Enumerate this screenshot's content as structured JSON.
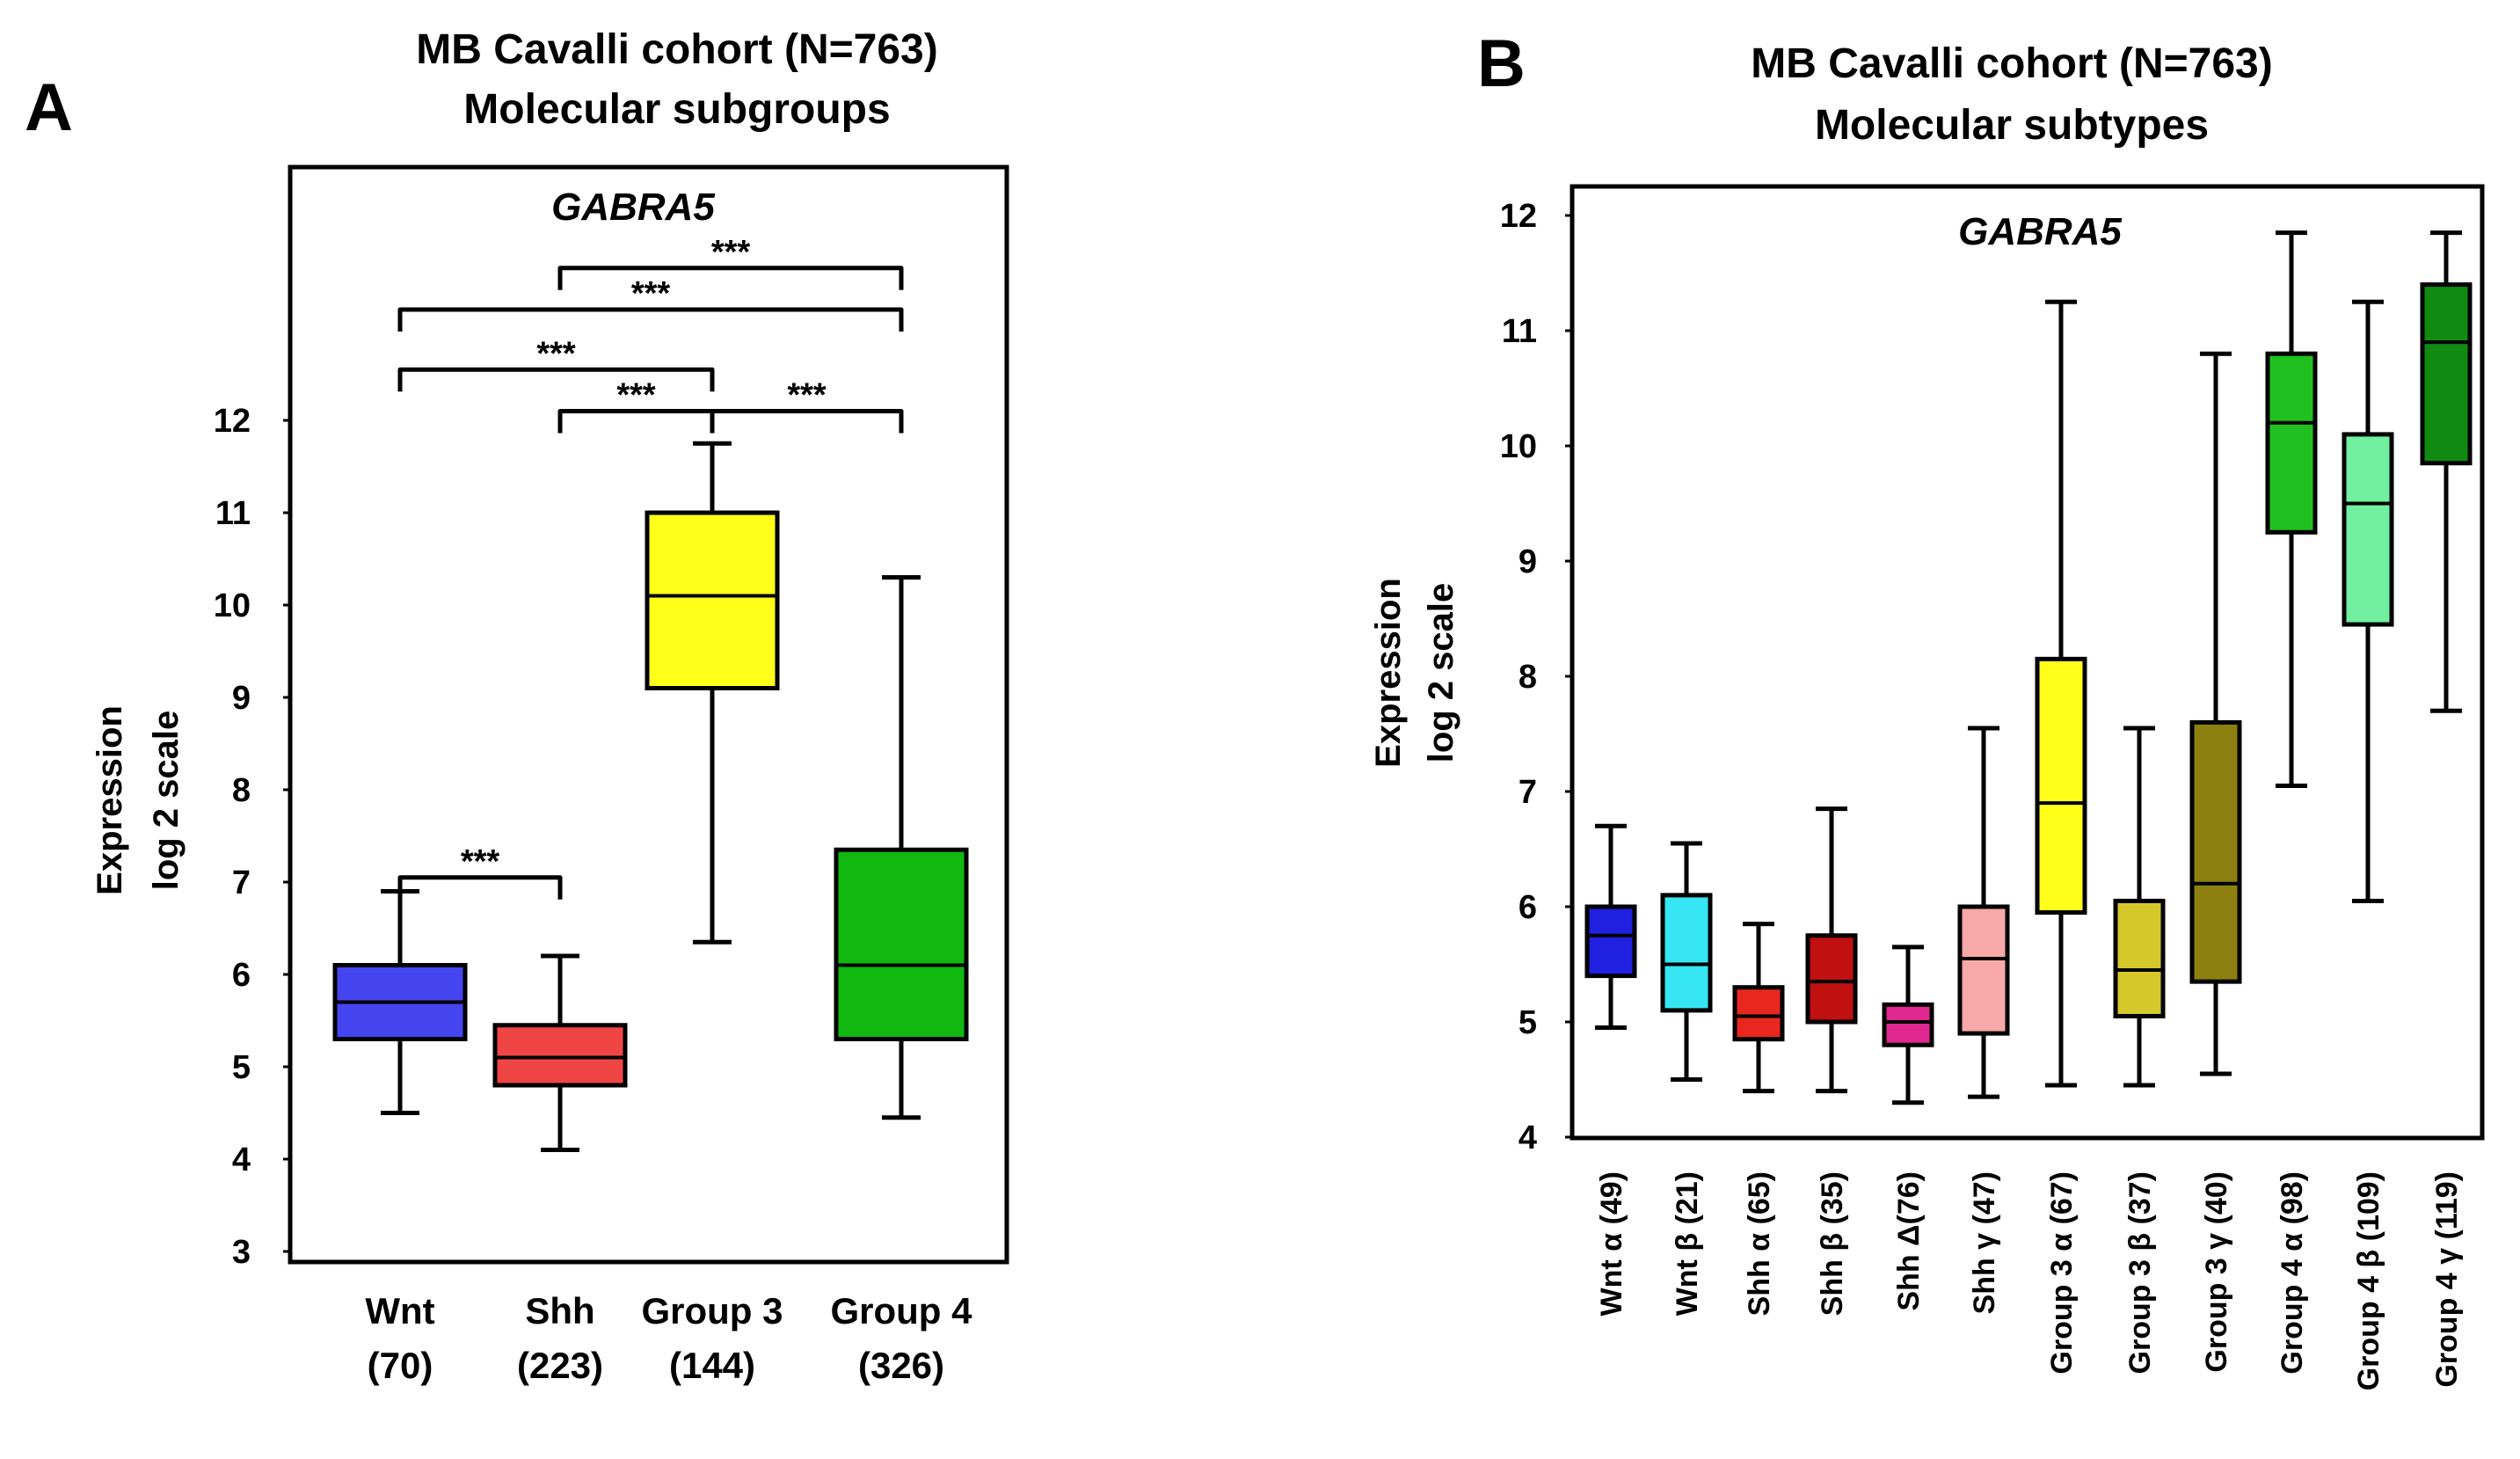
{
  "chart_data": [
    {
      "type": "box",
      "panel": "A",
      "title": "MB Cavalli cohort (N=763)",
      "subtitle": "Molecular subgroups",
      "gene": "GABRA5",
      "ylabel_line1": "Expression",
      "ylabel_line2": "log 2 scale",
      "ylim": [
        3,
        13
      ],
      "yticks": [
        3,
        4,
        5,
        6,
        7,
        8,
        9,
        10,
        11,
        12
      ],
      "categories": [
        {
          "name": "Wnt",
          "n": "(70)"
        },
        {
          "name": "Shh",
          "n": "(223)"
        },
        {
          "name": "Group 3",
          "n": "(144)"
        },
        {
          "name": "Group 4",
          "n": "(326)"
        }
      ],
      "boxes": [
        {
          "min": 4.5,
          "q1": 5.3,
          "median": 5.7,
          "q3": 6.1,
          "max": 6.9,
          "color": "#4545f0"
        },
        {
          "min": 4.1,
          "q1": 4.8,
          "median": 5.1,
          "q3": 5.45,
          "max": 6.2,
          "color": "#f04545"
        },
        {
          "min": 6.35,
          "q1": 9.1,
          "median": 10.1,
          "q3": 11.0,
          "max": 11.75,
          "color": "#ffff1a"
        },
        {
          "min": 4.45,
          "q1": 5.3,
          "median": 6.1,
          "q3": 7.35,
          "max": 10.3,
          "color": "#10b810"
        }
      ],
      "significance": [
        {
          "from": 0,
          "to": 1,
          "label": "***",
          "level": 7.05
        },
        {
          "from": 1,
          "to": 2,
          "label": "***",
          "level": 12.1
        },
        {
          "from": 2,
          "to": 3,
          "label": "***",
          "level": 12.1
        },
        {
          "from": 0,
          "to": 2,
          "label": "***",
          "level": 12.55
        },
        {
          "from": 0,
          "to": 3,
          "label": "***",
          "level": 13.2
        },
        {
          "from": 1,
          "to": 3,
          "label": "***",
          "level": 13.65
        }
      ]
    },
    {
      "type": "box",
      "panel": "B",
      "title": "MB Cavalli cohort (N=763)",
      "subtitle": "Molecular subtypes",
      "gene": "GABRA5",
      "ylabel_line1": "Expression",
      "ylabel_line2": "log 2 scale",
      "ylim": [
        4,
        12
      ],
      "yticks": [
        4,
        5,
        6,
        7,
        8,
        9,
        10,
        11,
        12
      ],
      "categories": [
        "Wnt α (49)",
        "Wnt β  (21)",
        "Shh α  (65)",
        "Shh β (35)",
        "Shh Δ(76)",
        "Shh γ (47)",
        "Group 3 α (67)",
        "Group 3 β (37)",
        "Group 3 γ (40)",
        "Group 4 α (98)",
        "Group 4 β (109)",
        "Group 4 γ (119)"
      ],
      "boxes": [
        {
          "min": 4.95,
          "q1": 5.4,
          "median": 5.75,
          "q3": 6.0,
          "max": 6.7,
          "color": "#2020e0"
        },
        {
          "min": 4.5,
          "q1": 5.1,
          "median": 5.5,
          "q3": 6.1,
          "max": 6.55,
          "color": "#35e6f2"
        },
        {
          "min": 4.4,
          "q1": 4.85,
          "median": 5.05,
          "q3": 5.3,
          "max": 5.85,
          "color": "#e8281e"
        },
        {
          "min": 4.4,
          "q1": 5.0,
          "median": 5.35,
          "q3": 5.75,
          "max": 6.85,
          "color": "#c01010"
        },
        {
          "min": 4.3,
          "q1": 4.8,
          "median": 5.0,
          "q3": 5.15,
          "max": 5.65,
          "color": "#e02890"
        },
        {
          "min": 4.35,
          "q1": 4.9,
          "median": 5.55,
          "q3": 6.0,
          "max": 7.55,
          "color": "#f8a8a8"
        },
        {
          "min": 4.45,
          "q1": 5.95,
          "median": 6.9,
          "q3": 8.15,
          "max": 11.25,
          "color": "#ffff1a"
        },
        {
          "min": 4.45,
          "q1": 5.05,
          "median": 5.45,
          "q3": 6.05,
          "max": 7.55,
          "color": "#d4c82a"
        },
        {
          "min": 4.55,
          "q1": 5.35,
          "median": 6.2,
          "q3": 7.6,
          "max": 10.8,
          "color": "#8c8010"
        },
        {
          "min": 7.05,
          "q1": 9.25,
          "median": 10.2,
          "q3": 10.8,
          "max": 11.85,
          "color": "#20c020"
        },
        {
          "min": 6.05,
          "q1": 8.45,
          "median": 9.5,
          "q3": 10.1,
          "max": 11.25,
          "color": "#70f0a0"
        },
        {
          "min": 7.7,
          "q1": 9.85,
          "median": 10.9,
          "q3": 11.4,
          "max": 11.85,
          "color": "#108a10"
        }
      ]
    }
  ]
}
